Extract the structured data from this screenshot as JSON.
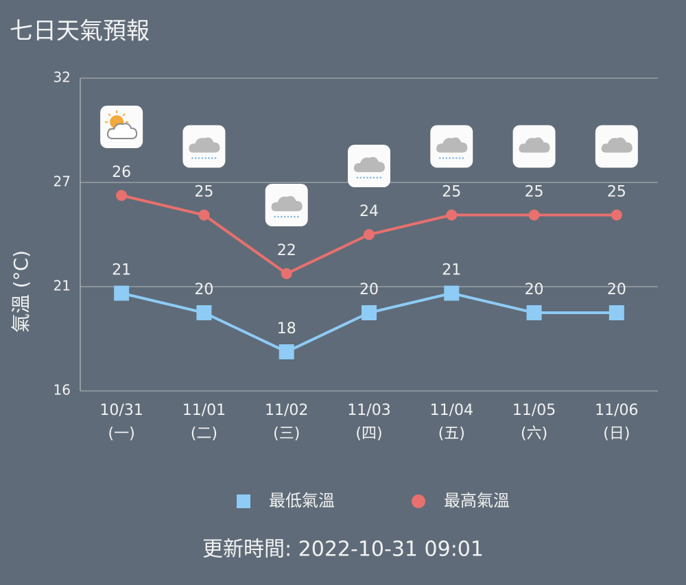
{
  "chart_data": {
    "type": "line",
    "title": "七日天氣預報",
    "y_label": "氣溫 (°C)",
    "categories": [
      "10/31",
      "11/01",
      "11/02",
      "11/03",
      "11/04",
      "11/05",
      "11/06"
    ],
    "category_sublabels": [
      "(一)",
      "(二)",
      "(三)",
      "(四)",
      "(五)",
      "(六)",
      "(日)"
    ],
    "icons": [
      "partly-cloudy",
      "rain",
      "rain",
      "rain",
      "rain",
      "cloudy",
      "cloudy"
    ],
    "series": [
      {
        "name": "最低氣溫",
        "color": "#8ecbf5",
        "marker": "square",
        "values": [
          21,
          20,
          18,
          20,
          21,
          20,
          20
        ]
      },
      {
        "name": "最高氣溫",
        "color": "#e8706e",
        "marker": "circle",
        "values": [
          26,
          25,
          22,
          24,
          25,
          25,
          25
        ]
      }
    ],
    "ylim": [
      16,
      32
    ],
    "yticks": [
      16,
      {
        "value": 21.333,
        "label": "21"
      },
      {
        "value": 26.667,
        "label": "27"
      },
      32
    ],
    "grid": true,
    "footer": "更新時間: 2022-10-31 09:01"
  }
}
